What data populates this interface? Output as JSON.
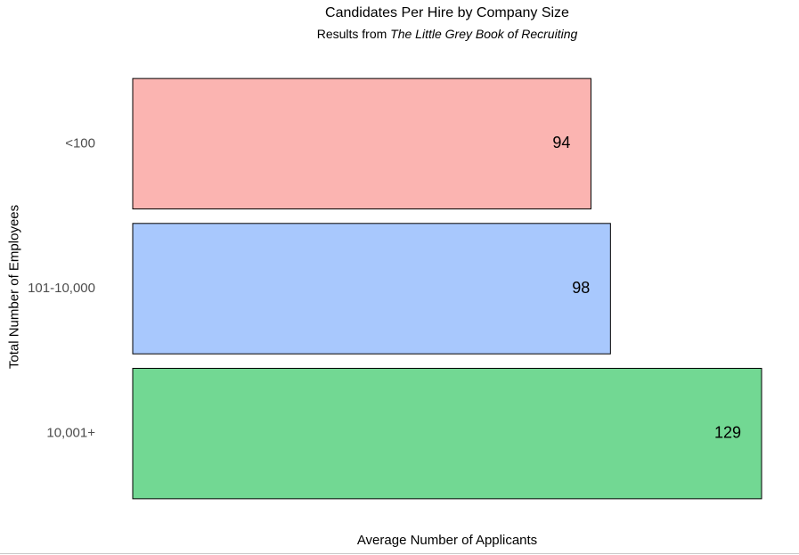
{
  "chart_data": {
    "type": "bar",
    "orientation": "horizontal",
    "title": "Candidates Per Hire by Company Size",
    "subtitle": {
      "prefix": "Results from ",
      "book": "The Little Grey Book of Recruiting"
    },
    "xlabel": "Average Number of Applicants",
    "ylabel": "Total Number of Employees",
    "categories": [
      "<100",
      "101-10,000",
      "10,001+"
    ],
    "values": [
      94,
      98,
      129
    ],
    "colors": [
      "#fbb4b1",
      "#a8c8fd",
      "#72d893"
    ],
    "xlim": [
      0,
      129
    ],
    "grid": false,
    "legend": "none"
  }
}
